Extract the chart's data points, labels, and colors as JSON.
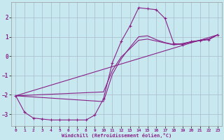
{
  "xlabel": "Windchill (Refroidissement éolien,°C)",
  "bg_color": "#c8e8f0",
  "line_color": "#882288",
  "grid_color": "#aabbcc",
  "xlim": [
    -0.5,
    23.5
  ],
  "ylim": [
    -3.6,
    2.8
  ],
  "xticks": [
    0,
    1,
    2,
    3,
    4,
    5,
    6,
    7,
    8,
    9,
    10,
    11,
    12,
    13,
    14,
    15,
    16,
    17,
    18,
    19,
    20,
    21,
    22,
    23
  ],
  "yticks": [
    -3,
    -2,
    -1,
    0,
    1,
    2
  ],
  "line1": [
    [
      0,
      -2.05
    ],
    [
      1,
      -2.9
    ],
    [
      2,
      -3.2
    ],
    [
      3,
      -3.25
    ],
    [
      4,
      -3.3
    ],
    [
      5,
      -3.3
    ],
    [
      6,
      -3.3
    ],
    [
      7,
      -3.3
    ],
    [
      8,
      -3.3
    ],
    [
      9,
      -3.05
    ],
    [
      10,
      -2.2
    ],
    [
      11,
      -0.35
    ],
    [
      12,
      0.75
    ],
    [
      13,
      1.55
    ],
    [
      14,
      2.5
    ],
    [
      15,
      2.45
    ],
    [
      16,
      2.4
    ],
    [
      17,
      1.95
    ],
    [
      18,
      0.65
    ],
    [
      19,
      0.6
    ],
    [
      20,
      0.75
    ],
    [
      21,
      0.8
    ],
    [
      22,
      0.85
    ],
    [
      23,
      1.1
    ]
  ],
  "line2": [
    [
      0,
      -2.05
    ],
    [
      10,
      -2.35
    ],
    [
      11,
      -0.95
    ],
    [
      12,
      -0.15
    ],
    [
      13,
      0.45
    ],
    [
      14,
      1.0
    ],
    [
      15,
      1.05
    ],
    [
      16,
      0.85
    ],
    [
      17,
      0.7
    ],
    [
      18,
      0.6
    ],
    [
      19,
      0.65
    ],
    [
      20,
      0.75
    ],
    [
      21,
      0.82
    ],
    [
      22,
      0.88
    ],
    [
      23,
      1.1
    ]
  ],
  "line3": [
    [
      0,
      -2.05
    ],
    [
      10,
      -1.85
    ],
    [
      11,
      -0.75
    ],
    [
      12,
      -0.05
    ],
    [
      13,
      0.38
    ],
    [
      14,
      0.82
    ],
    [
      15,
      0.88
    ],
    [
      16,
      0.78
    ],
    [
      17,
      0.68
    ],
    [
      18,
      0.58
    ],
    [
      19,
      0.63
    ],
    [
      20,
      0.73
    ],
    [
      21,
      0.8
    ],
    [
      22,
      0.88
    ],
    [
      23,
      1.1
    ]
  ],
  "line4": [
    [
      0,
      -2.05
    ],
    [
      23,
      1.1
    ]
  ]
}
